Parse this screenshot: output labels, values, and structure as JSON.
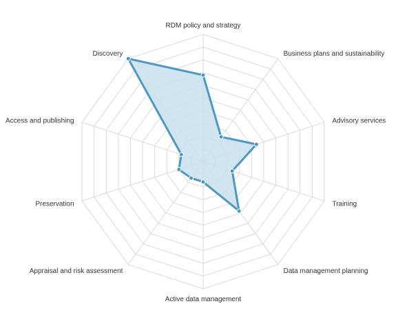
{
  "chart_data": {
    "type": "radar",
    "title": "",
    "axes": [
      "RDM policy and strategy",
      "Business plans and sustainability",
      "Advisory services",
      "Training",
      "Data management planning",
      "Active data management",
      "Appraisal and risk assessment",
      "Preservation",
      "Access and publishing",
      "Discovery"
    ],
    "series": [
      {
        "values": [
          1.7,
          0.6,
          1.1,
          0.6,
          1.2,
          0.4,
          0.4,
          0.5,
          0.45,
          2.5
        ],
        "color": "#4a98c4",
        "fill": "#c9e1ee"
      }
    ],
    "range": [
      0,
      2.5
    ],
    "rings": 10,
    "grid": true,
    "legend": "none"
  }
}
